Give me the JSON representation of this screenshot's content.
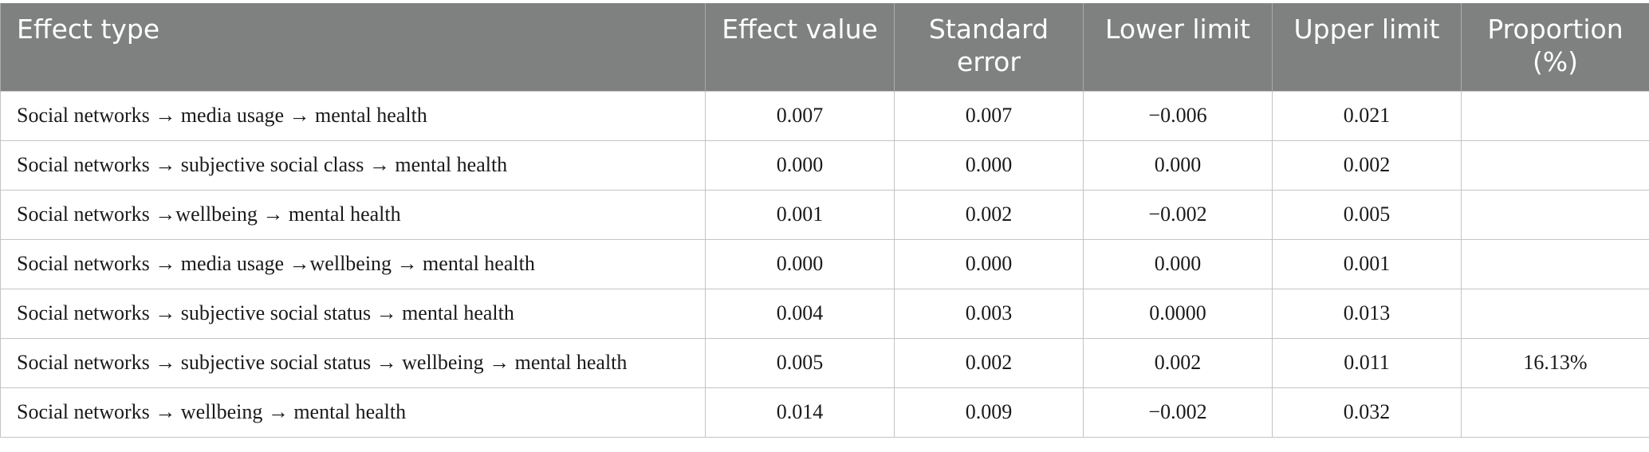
{
  "table": {
    "headers": [
      "Effect type",
      "Effect value",
      "Standard error",
      "Lower limit",
      "Upper limit",
      "Proportion (%)"
    ],
    "rows": [
      [
        "Social networks → media usage → mental health",
        "0.007",
        "0.007",
        "−0.006",
        "0.021",
        ""
      ],
      [
        "Social networks → subjective social class → mental health",
        "0.000",
        "0.000",
        "0.000",
        "0.002",
        ""
      ],
      [
        "Social networks →wellbeing → mental health",
        "0.001",
        "0.002",
        "−0.002",
        "0.005",
        ""
      ],
      [
        "Social networks → media usage →wellbeing → mental health",
        "0.000",
        "0.000",
        "0.000",
        "0.001",
        ""
      ],
      [
        "Social networks → subjective social status → mental health",
        "0.004",
        "0.003",
        "0.0000",
        "0.013",
        ""
      ],
      [
        "Social networks → subjective social status → wellbeing → mental health",
        "0.005",
        "0.002",
        "0.002",
        "0.011",
        "16.13%"
      ],
      [
        "Social networks → wellbeing → mental health",
        "0.014",
        "0.009",
        "−0.002",
        "0.032",
        ""
      ]
    ]
  },
  "colors": {
    "header_bg": "#7f8180",
    "header_text": "#ffffff",
    "grid": "#c4c4c4"
  }
}
